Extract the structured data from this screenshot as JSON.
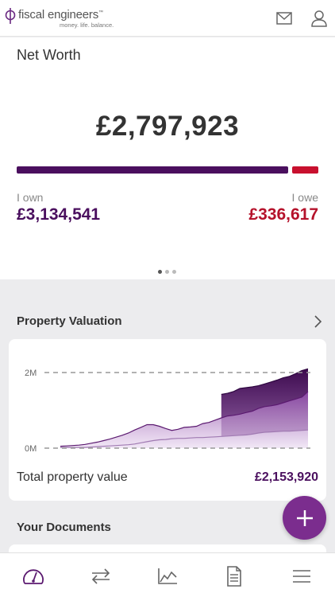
{
  "brand": {
    "name": "fiscal engineers",
    "trademark": "™",
    "tagline": "money. life. balance."
  },
  "net_worth": {
    "title": "Net Worth",
    "amount": "£2,797,923",
    "own_label": "I own",
    "own_amount": "£3,134,541",
    "owe_label": "I owe",
    "owe_amount": "£336,617",
    "own_share": 0.903,
    "carousel_pages": 3,
    "carousel_active": 0
  },
  "property": {
    "section_title": "Property Valuation",
    "total_label": "Total property value",
    "total_value": "£2,153,920"
  },
  "documents": {
    "section_title": "Your Documents"
  },
  "chart_data": {
    "type": "area",
    "y_ticks": [
      "2M",
      "0M"
    ],
    "ylim": [
      0,
      2000000
    ],
    "grid": "dashed at ticks",
    "series": [
      {
        "values": [
          0.05,
          0.06,
          0.07,
          0.08,
          0.1,
          0.13,
          0.16,
          0.2,
          0.24,
          0.29,
          0.34,
          0.4,
          0.48,
          0.55,
          0.62,
          0.62,
          0.58,
          0.52,
          0.47,
          0.5,
          0.55,
          0.56,
          0.58,
          0.65,
          0.68,
          0.74,
          0.8,
          0.85,
          0.87,
          0.9,
          0.94,
          0.98,
          1.05,
          1.1,
          1.12,
          1.15,
          1.2,
          1.25,
          1.3,
          1.35,
          1.5
        ]
      },
      {
        "values": [
          0.02,
          0.02,
          0.02,
          0.02,
          0.02,
          0.03,
          0.04,
          0.05,
          0.06,
          0.07,
          0.08,
          0.09,
          0.11,
          0.14,
          0.17,
          0.2,
          0.22,
          0.23,
          0.25,
          0.26,
          0.26,
          0.27,
          0.28,
          0.28,
          0.29,
          0.3,
          0.31,
          0.32,
          0.33,
          0.34,
          0.35,
          0.37,
          0.4,
          0.42,
          0.43,
          0.44,
          0.45,
          0.45,
          0.46,
          0.47,
          0.48
        ]
      },
      {
        "start_index": 26,
        "values": [
          1.42,
          1.45,
          1.5,
          1.58,
          1.6,
          1.62,
          1.65,
          1.7,
          1.75,
          1.8,
          1.86,
          1.9,
          1.97,
          2.05,
          2.1
        ]
      }
    ]
  },
  "nav": {
    "items": [
      "dashboard-icon",
      "transfer-icon",
      "chart-icon",
      "document-icon",
      "menu-icon"
    ],
    "active": "dashboard-icon"
  },
  "colors": {
    "primary": "#4a0f5e",
    "owe": "#c8102e",
    "accent": "#7b2d8e"
  }
}
